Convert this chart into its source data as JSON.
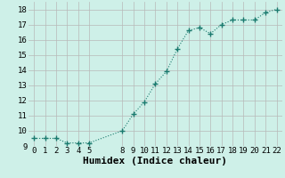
{
  "x": [
    0,
    1,
    2,
    3,
    4,
    5,
    8,
    9,
    10,
    11,
    12,
    13,
    14,
    15,
    16,
    17,
    18,
    19,
    20,
    21,
    22
  ],
  "y": [
    9.5,
    9.5,
    9.5,
    9.2,
    9.2,
    9.2,
    10.0,
    11.1,
    11.9,
    13.1,
    13.9,
    15.4,
    16.6,
    16.8,
    16.4,
    17.0,
    17.3,
    17.3,
    17.3,
    17.8,
    18.0
  ],
  "xlabel": "Humidex (Indice chaleur)",
  "ylabel": "",
  "xlim": [
    -0.5,
    22.5
  ],
  "ylim": [
    9.0,
    18.5
  ],
  "yticks": [
    9,
    10,
    11,
    12,
    13,
    14,
    15,
    16,
    17,
    18
  ],
  "xticks": [
    0,
    1,
    2,
    3,
    4,
    5,
    8,
    9,
    10,
    11,
    12,
    13,
    14,
    15,
    16,
    17,
    18,
    19,
    20,
    21,
    22
  ],
  "line_color": "#1a7a6e",
  "marker_color": "#1a7a6e",
  "bg_color": "#cef0e8",
  "grid_color": "#b8b8b8",
  "tick_label_fontsize": 6.5,
  "xlabel_fontsize": 8
}
